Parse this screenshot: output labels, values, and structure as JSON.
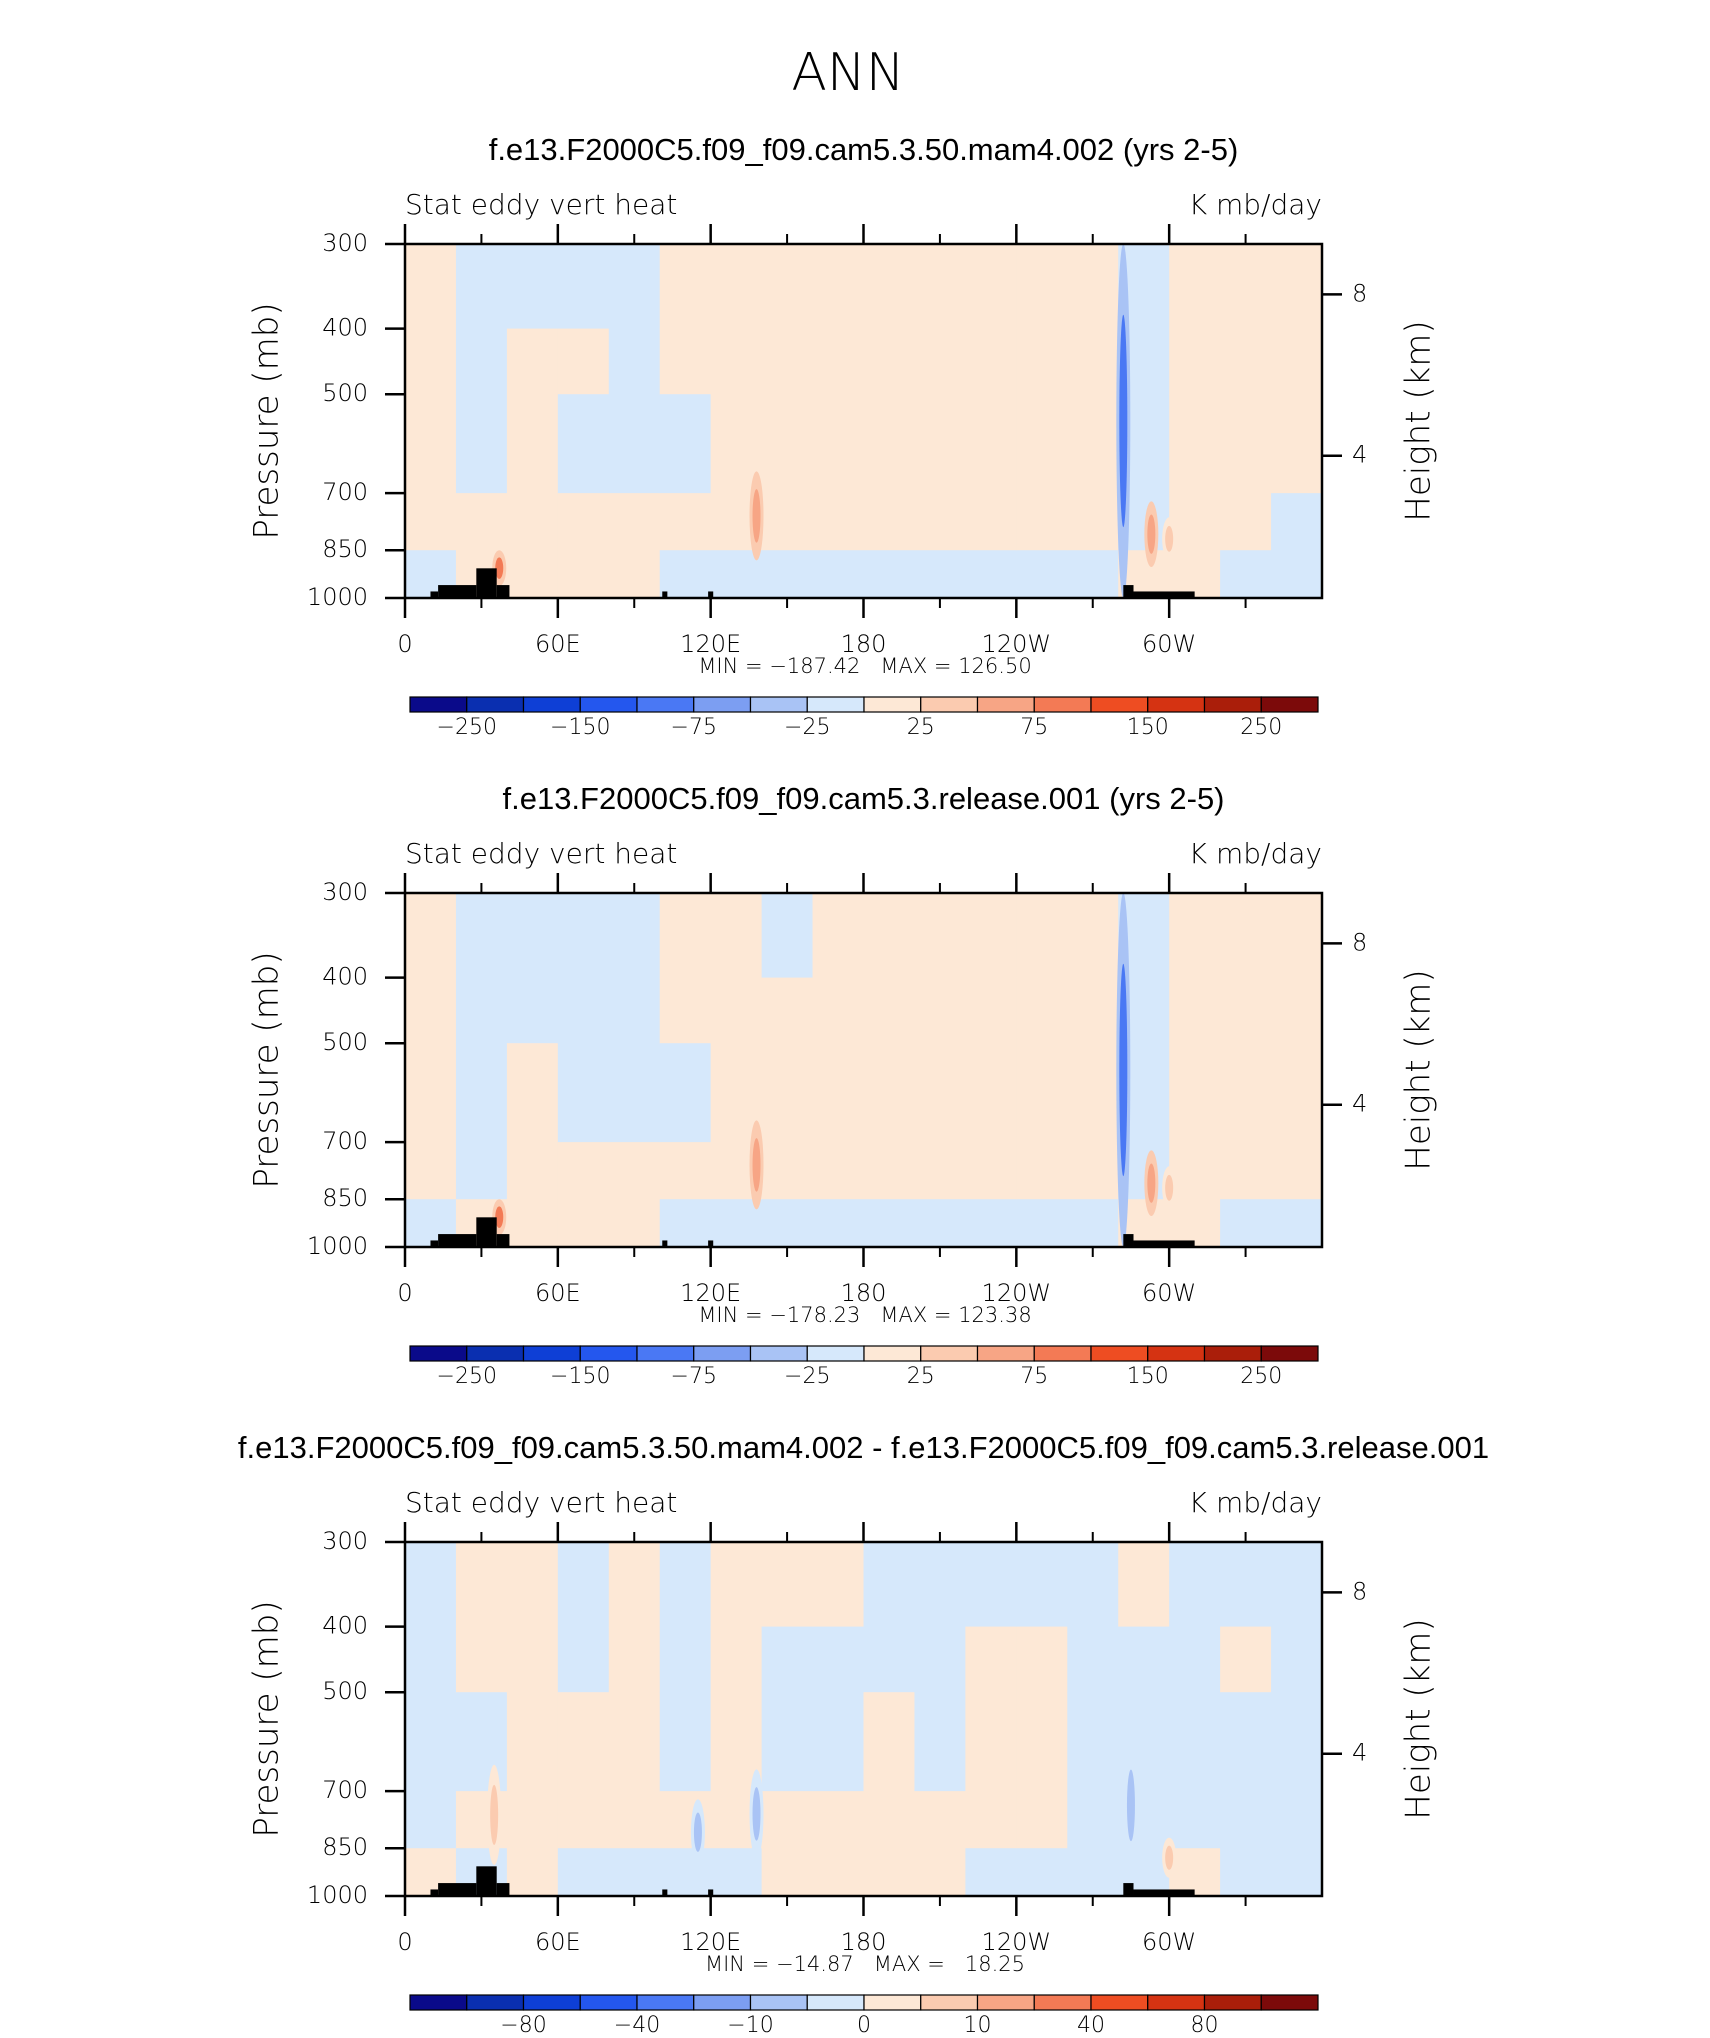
{
  "title": "ANN",
  "chart_data": [
    {
      "type": "contour",
      "title": "f.e13.F2000C5.f09_f09.cam5.3.50.mam4.002 (yrs 2-5)",
      "left_label": "Stat eddy vert heat",
      "right_label": "K mb/day",
      "ylabel": "Pressure (mb)",
      "y2label": "Height (km)",
      "xlim": [
        0,
        360
      ],
      "xticks": [
        0,
        {
          "value": 60,
          "label": "60E"
        },
        {
          "value": 120,
          "label": "120E"
        },
        180,
        {
          "value": 240,
          "label": "120W"
        },
        {
          "value": 300,
          "label": "60W"
        }
      ],
      "xminorticks": [
        30,
        90,
        150,
        210,
        270,
        330
      ],
      "ylim": [
        300,
        1000
      ],
      "ylog": true,
      "yticks": [
        300,
        400,
        500,
        700,
        850,
        1000
      ],
      "y2scale": "standard-atmosphere",
      "y2ticks": [
        4,
        8
      ],
      "stats": "MIN = −187.42   MAX = 126.50",
      "field": {
        "x": [
          0,
          20,
          40,
          60,
          80,
          100,
          120,
          140,
          160,
          180,
          200,
          220,
          240,
          260,
          280,
          300,
          320,
          340,
          360
        ],
        "p": [
          300,
          400,
          500,
          700,
          850,
          1000
        ],
        "values": [
          [
            10,
            10,
            5,
            10,
            -10
          ],
          [
            -10,
            -10,
            -10,
            10,
            10
          ],
          [
            -10,
            10,
            10,
            10,
            10
          ],
          [
            -10,
            10,
            -10,
            10,
            10
          ],
          [
            -10,
            -10,
            -10,
            10,
            10
          ],
          [
            10,
            10,
            -10,
            10,
            -10
          ],
          [
            10,
            10,
            10,
            10,
            -10
          ],
          [
            10,
            10,
            10,
            10,
            -10
          ],
          [
            10,
            10,
            10,
            10,
            -10
          ],
          [
            10,
            10,
            10,
            10,
            -10
          ],
          [
            10,
            10,
            10,
            10,
            -10
          ],
          [
            10,
            10,
            10,
            10,
            -10
          ],
          [
            10,
            10,
            10,
            10,
            -10
          ],
          [
            10,
            10,
            10,
            10,
            -10
          ],
          [
            -10,
            -10,
            -10,
            -10,
            10
          ],
          [
            10,
            10,
            10,
            10,
            10
          ],
          [
            10,
            10,
            10,
            10,
            -10
          ],
          [
            10,
            10,
            10,
            -10,
            -10
          ]
        ]
      },
      "features": [
        {
          "lon": 282,
          "p": [
            300,
            1000
          ],
          "value": -100
        },
        {
          "lon": 138,
          "p": [
            650,
            880
          ],
          "value": 60
        },
        {
          "lon": 37,
          "p": [
            850,
            960
          ],
          "value": 80
        },
        {
          "lon": 293,
          "p": [
            720,
            900
          ],
          "value": 60
        },
        {
          "lon": 300,
          "p": [
            760,
            880
          ],
          "value": 30
        }
      ],
      "terrain": [
        [
          10,
          13,
          978
        ],
        [
          13,
          28,
          957
        ],
        [
          28,
          36,
          904
        ],
        [
          36,
          41,
          957
        ],
        [
          101,
          103,
          978
        ],
        [
          119,
          121,
          978
        ],
        [
          282,
          286,
          957
        ],
        [
          286,
          310,
          978
        ]
      ],
      "colorbar": {
        "levels": [
          {
            "value": -250,
            "label": "−250"
          },
          {
            "value": -200,
            "label": null
          },
          {
            "value": -150,
            "label": "−150"
          },
          {
            "value": -100,
            "label": null
          },
          {
            "value": -75,
            "label": "−75"
          },
          {
            "value": -50,
            "label": null
          },
          {
            "value": -25,
            "label": "−25"
          },
          {
            "value": 0,
            "label": null
          },
          25,
          {
            "value": 50,
            "label": null
          },
          75,
          {
            "value": 100,
            "label": null
          },
          150,
          {
            "value": 200,
            "label": null
          },
          250
        ],
        "colors": [
          "#0a0a8a",
          "#0a2fb0",
          "#0e3fd6",
          "#2457ee",
          "#4a78f4",
          "#7c9ef2",
          "#a9c3f5",
          "#d6e8fb",
          "#fde8d6",
          "#fbcbb0",
          "#f7a585",
          "#f37a55",
          "#ee4d22",
          "#d53312",
          "#aa1e0a",
          "#7c0a0a"
        ]
      }
    },
    {
      "type": "contour",
      "title": "f.e13.F2000C5.f09_f09.cam5.3.release.001 (yrs 2-5)",
      "left_label": "Stat eddy vert heat",
      "right_label": "K mb/day",
      "ylabel": "Pressure (mb)",
      "y2label": "Height (km)",
      "xlim": [
        0,
        360
      ],
      "xticks": [
        0,
        {
          "value": 60,
          "label": "60E"
        },
        {
          "value": 120,
          "label": "120E"
        },
        180,
        {
          "value": 240,
          "label": "120W"
        },
        {
          "value": 300,
          "label": "60W"
        }
      ],
      "xminorticks": [
        30,
        90,
        150,
        210,
        270,
        330
      ],
      "ylim": [
        300,
        1000
      ],
      "ylog": true,
      "yticks": [
        300,
        400,
        500,
        700,
        850,
        1000
      ],
      "y2scale": "standard-atmosphere",
      "y2ticks": [
        4,
        8
      ],
      "stats": "MIN = −178.23   MAX = 123.38",
      "field": {
        "x": [
          0,
          20,
          40,
          60,
          80,
          100,
          120,
          140,
          160,
          180,
          200,
          220,
          240,
          260,
          280,
          300,
          320,
          340,
          360
        ],
        "p": [
          300,
          400,
          500,
          700,
          850,
          1000
        ],
        "values": [
          [
            10,
            10,
            10,
            10,
            -10
          ],
          [
            -10,
            -10,
            -10,
            -10,
            10
          ],
          [
            -10,
            -10,
            10,
            10,
            10
          ],
          [
            -10,
            -10,
            -10,
            10,
            10
          ],
          [
            -10,
            -10,
            -10,
            10,
            10
          ],
          [
            10,
            10,
            -10,
            10,
            -10
          ],
          [
            10,
            10,
            10,
            10,
            -10
          ],
          [
            -10,
            10,
            10,
            10,
            -10
          ],
          [
            10,
            10,
            10,
            10,
            -10
          ],
          [
            10,
            10,
            10,
            10,
            -10
          ],
          [
            10,
            10,
            10,
            10,
            -10
          ],
          [
            10,
            10,
            10,
            10,
            -10
          ],
          [
            10,
            10,
            10,
            10,
            -10
          ],
          [
            10,
            10,
            10,
            10,
            -10
          ],
          [
            -10,
            -10,
            -10,
            -10,
            10
          ],
          [
            10,
            10,
            10,
            10,
            10
          ],
          [
            10,
            10,
            10,
            10,
            -10
          ],
          [
            10,
            10,
            10,
            10,
            -10
          ]
        ]
      },
      "features": [
        {
          "lon": 282,
          "p": [
            300,
            1000
          ],
          "value": -100
        },
        {
          "lon": 138,
          "p": [
            650,
            880
          ],
          "value": 60
        },
        {
          "lon": 37,
          "p": [
            850,
            960
          ],
          "value": 80
        },
        {
          "lon": 293,
          "p": [
            720,
            900
          ],
          "value": 60
        },
        {
          "lon": 300,
          "p": [
            760,
            880
          ],
          "value": 30
        }
      ],
      "terrain": [
        [
          10,
          13,
          978
        ],
        [
          13,
          28,
          957
        ],
        [
          28,
          36,
          904
        ],
        [
          36,
          41,
          957
        ],
        [
          101,
          103,
          978
        ],
        [
          119,
          121,
          978
        ],
        [
          282,
          286,
          957
        ],
        [
          286,
          310,
          978
        ]
      ],
      "colorbar": {
        "levels": [
          {
            "value": -250,
            "label": "−250"
          },
          {
            "value": -200,
            "label": null
          },
          {
            "value": -150,
            "label": "−150"
          },
          {
            "value": -100,
            "label": null
          },
          {
            "value": -75,
            "label": "−75"
          },
          {
            "value": -50,
            "label": null
          },
          {
            "value": -25,
            "label": "−25"
          },
          {
            "value": 0,
            "label": null
          },
          25,
          {
            "value": 50,
            "label": null
          },
          75,
          {
            "value": 100,
            "label": null
          },
          150,
          {
            "value": 200,
            "label": null
          },
          250
        ],
        "colors": [
          "#0a0a8a",
          "#0a2fb0",
          "#0e3fd6",
          "#2457ee",
          "#4a78f4",
          "#7c9ef2",
          "#a9c3f5",
          "#d6e8fb",
          "#fde8d6",
          "#fbcbb0",
          "#f7a585",
          "#f37a55",
          "#ee4d22",
          "#d53312",
          "#aa1e0a",
          "#7c0a0a"
        ]
      }
    },
    {
      "type": "contour",
      "title": "f.e13.F2000C5.f09_f09.cam5.3.50.mam4.002 - f.e13.F2000C5.f09_f09.cam5.3.release.001",
      "left_label": "Stat eddy vert heat",
      "right_label": "K mb/day",
      "ylabel": "Pressure (mb)",
      "y2label": "Height (km)",
      "xlim": [
        0,
        360
      ],
      "xticks": [
        0,
        {
          "value": 60,
          "label": "60E"
        },
        {
          "value": 120,
          "label": "120E"
        },
        180,
        {
          "value": 240,
          "label": "120W"
        },
        {
          "value": 300,
          "label": "60W"
        }
      ],
      "xminorticks": [
        30,
        90,
        150,
        210,
        270,
        330
      ],
      "ylim": [
        300,
        1000
      ],
      "ylog": true,
      "yticks": [
        300,
        400,
        500,
        700,
        850,
        1000
      ],
      "y2scale": "standard-atmosphere",
      "y2ticks": [
        4,
        8
      ],
      "stats": "MIN = −14.87   MAX =   18.25",
      "field": {
        "x": [
          0,
          20,
          40,
          60,
          80,
          100,
          120,
          140,
          160,
          180,
          200,
          220,
          240,
          260,
          280,
          300,
          320,
          340,
          360
        ],
        "p": [
          300,
          400,
          500,
          700,
          850,
          1000
        ],
        "values": [
          [
            -2,
            -2,
            -2,
            -2,
            2
          ],
          [
            2,
            2,
            -2,
            2,
            -2
          ],
          [
            2,
            2,
            2,
            2,
            2
          ],
          [
            -2,
            -2,
            2,
            2,
            -2
          ],
          [
            2,
            2,
            2,
            2,
            -2
          ],
          [
            -2,
            -2,
            -2,
            2,
            -2
          ],
          [
            2,
            2,
            2,
            2,
            -2
          ],
          [
            2,
            -2,
            -2,
            2,
            2
          ],
          [
            2,
            -2,
            -2,
            2,
            2
          ],
          [
            -2,
            -2,
            2,
            2,
            2
          ],
          [
            -2,
            -2,
            -2,
            2,
            2
          ],
          [
            -2,
            2,
            2,
            2,
            -2
          ],
          [
            -2,
            2,
            2,
            2,
            -2
          ],
          [
            -2,
            -2,
            -2,
            -2,
            -2
          ],
          [
            2,
            -2,
            -2,
            -2,
            -2
          ],
          [
            -2,
            -2,
            -2,
            -2,
            2
          ],
          [
            -2,
            2,
            -2,
            -2,
            -2
          ],
          [
            -2,
            -2,
            -2,
            -2,
            -2
          ]
        ]
      },
      "features": [
        {
          "lon": 35,
          "p": [
            640,
            900
          ],
          "value": 8
        },
        {
          "lon": 285,
          "p": [
            600,
            900
          ],
          "value": -8
        },
        {
          "lon": 300,
          "p": [
            820,
            940
          ],
          "value": 8
        },
        {
          "lon": 115,
          "p": [
            720,
            900
          ],
          "value": -6
        },
        {
          "lon": 138,
          "p": [
            650,
            880
          ],
          "value": -6
        }
      ],
      "terrain": [
        [
          10,
          13,
          978
        ],
        [
          13,
          28,
          957
        ],
        [
          28,
          36,
          904
        ],
        [
          36,
          41,
          957
        ],
        [
          101,
          103,
          978
        ],
        [
          119,
          121,
          978
        ],
        [
          282,
          286,
          957
        ],
        [
          286,
          310,
          978
        ]
      ],
      "colorbar": {
        "levels": [
          {
            "value": -100,
            "label": null
          },
          {
            "value": -80,
            "label": "−80"
          },
          {
            "value": -60,
            "label": null
          },
          {
            "value": -40,
            "label": "−40"
          },
          {
            "value": -20,
            "label": null
          },
          {
            "value": -10,
            "label": "−10"
          },
          {
            "value": -5,
            "label": null
          },
          0,
          {
            "value": 5,
            "label": null
          },
          10,
          {
            "value": 20,
            "label": null
          },
          40,
          {
            "value": 60,
            "label": null
          },
          80,
          {
            "value": 100,
            "label": null
          }
        ],
        "colors": [
          "#0a0a8a",
          "#0a2fb0",
          "#0e3fd6",
          "#2457ee",
          "#4a78f4",
          "#7c9ef2",
          "#a9c3f5",
          "#d6e8fb",
          "#fde8d6",
          "#fbcbb0",
          "#f7a585",
          "#f37a55",
          "#ee4d22",
          "#d53312",
          "#aa1e0a",
          "#7c0a0a"
        ]
      }
    }
  ]
}
